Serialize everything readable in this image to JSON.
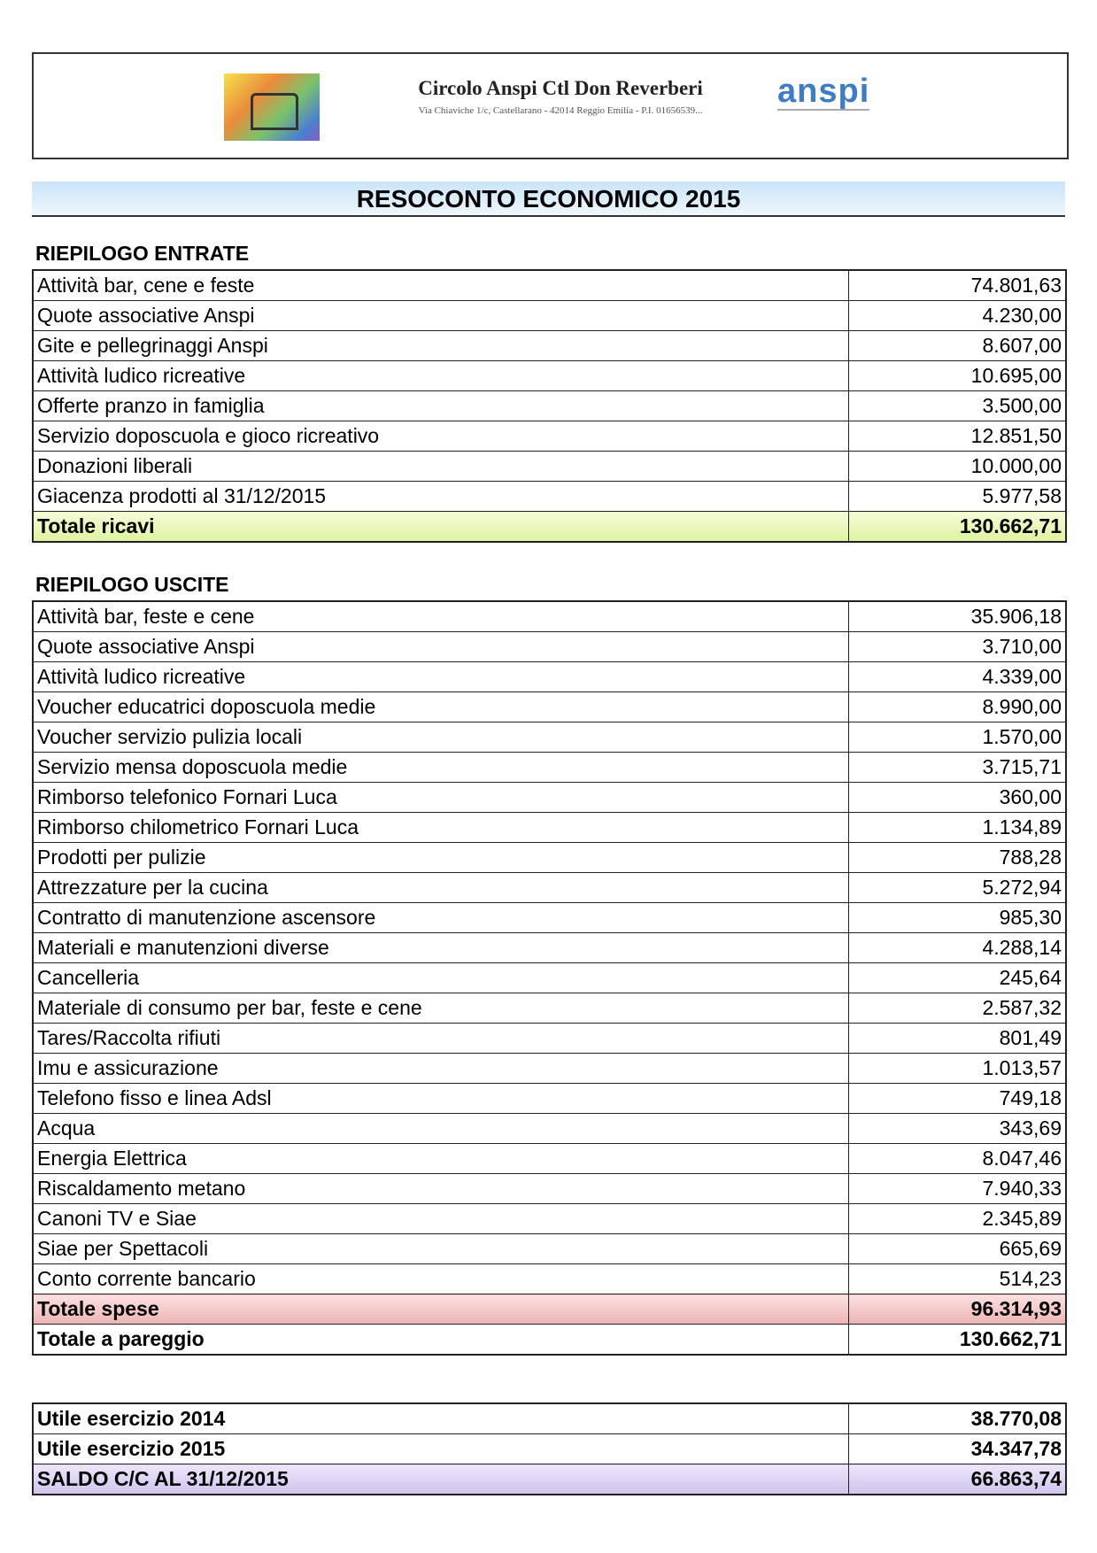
{
  "header": {
    "name": "Circolo Anspi Ctl Don Reverberi",
    "address": "Via Chiaviche 1/c, Castellarano - 42014 Reggio Emilia - P.I. 01656539...",
    "brand": "anspi"
  },
  "title": "RESOCONTO ECONOMICO 2015",
  "entrate": {
    "heading": "RIEPILOGO ENTRATE",
    "rows": [
      [
        "Attività bar, cene e feste",
        "74.801,63"
      ],
      [
        "Quote associative Anspi",
        "4.230,00"
      ],
      [
        "Gite e pellegrinaggi Anspi",
        "8.607,00"
      ],
      [
        "Attività ludico ricreative",
        "10.695,00"
      ],
      [
        "Offerte pranzo in famiglia",
        "3.500,00"
      ],
      [
        "Servizio doposcuola e gioco ricreativo",
        "12.851,50"
      ],
      [
        "Donazioni liberali",
        "10.000,00"
      ],
      [
        "Giacenza prodotti al 31/12/2015",
        "5.977,58"
      ]
    ],
    "total": [
      "Totale ricavi",
      "130.662,71"
    ]
  },
  "uscite": {
    "heading": "RIEPILOGO USCITE",
    "rows": [
      [
        "Attività bar, feste e cene",
        "35.906,18"
      ],
      [
        "Quote associative Anspi",
        "3.710,00"
      ],
      [
        "Attività ludico ricreative",
        "4.339,00"
      ],
      [
        "Voucher educatrici doposcuola medie",
        "8.990,00"
      ],
      [
        "Voucher servizio pulizia locali",
        "1.570,00"
      ],
      [
        "Servizio mensa doposcuola medie",
        "3.715,71"
      ],
      [
        "Rimborso telefonico Fornari Luca",
        "360,00"
      ],
      [
        "Rimborso chilometrico Fornari Luca",
        "1.134,89"
      ],
      [
        "Prodotti per pulizie",
        "788,28"
      ],
      [
        "Attrezzature per la cucina",
        "5.272,94"
      ],
      [
        "Contratto di manutenzione ascensore",
        "985,30"
      ],
      [
        "Materiali e manutenzioni diverse",
        "4.288,14"
      ],
      [
        "Cancelleria",
        "245,64"
      ],
      [
        "Materiale di consumo per bar, feste e cene",
        "2.587,32"
      ],
      [
        "Tares/Raccolta rifiuti",
        "801,49"
      ],
      [
        "Imu e assicurazione",
        "1.013,57"
      ],
      [
        "Telefono fisso e linea Adsl",
        "749,18"
      ],
      [
        "Acqua",
        "343,69"
      ],
      [
        "Energia Elettrica",
        "8.047,46"
      ],
      [
        "Riscaldamento metano",
        "7.940,33"
      ],
      [
        "Canoni TV e Siae",
        "2.345,89"
      ],
      [
        "Siae per Spettacoli",
        "665,69"
      ],
      [
        "Conto corrente bancario",
        "514,23"
      ]
    ],
    "total": [
      "Totale spese",
      "96.314,93"
    ],
    "balance": [
      "Totale a pareggio",
      "130.662,71"
    ]
  },
  "saldo": {
    "rows": [
      [
        "Utile esercizio 2014",
        "38.770,08"
      ],
      [
        "Utile esercizio 2015",
        "34.347,78"
      ]
    ],
    "total": [
      "SALDO C/C AL 31/12/2015",
      "66.863,74"
    ]
  }
}
